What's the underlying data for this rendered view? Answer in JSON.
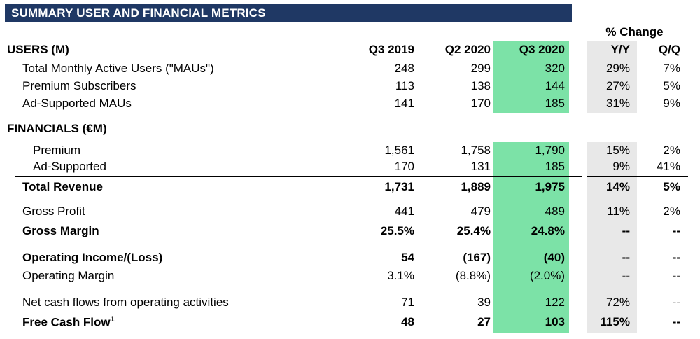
{
  "title": "SUMMARY USER AND FINANCIAL METRICS",
  "pct_change_label": "% Change",
  "colors": {
    "header_bar": "#1F3864",
    "q3_2020_highlight": "#7CE2A7",
    "yy_highlight": "#E8E8E8",
    "muted_dash": "#595959"
  },
  "rows": [
    {
      "id": "users-header",
      "kind": "column-header",
      "label": "USERS (M)",
      "indent": 0,
      "bold": true,
      "values": [
        "Q3 2019",
        "Q2 2020",
        "Q3 2020",
        "Y/Y",
        "Q/Q"
      ]
    },
    {
      "id": "total-maus",
      "label": "Total Monthly Active Users (\"MAUs\")",
      "indent": 1,
      "bold": false,
      "values": [
        "248",
        "299",
        "320",
        "29%",
        "7%"
      ]
    },
    {
      "id": "premium-subscribers",
      "label": "Premium Subscribers",
      "indent": 1,
      "bold": false,
      "values": [
        "113",
        "138",
        "144",
        "27%",
        "5%"
      ]
    },
    {
      "id": "ad-supported-maus",
      "label": "Ad-Supported MAUs",
      "indent": 1,
      "bold": false,
      "values": [
        "141",
        "170",
        "185",
        "31%",
        "9%"
      ]
    },
    {
      "id": "financials-header",
      "kind": "section",
      "label": "FINANCIALS (€M)",
      "indent": 0,
      "bold": true,
      "values": [
        "",
        "",
        "",
        "",
        ""
      ]
    },
    {
      "id": "premium-revenue",
      "label": "Premium",
      "indent": 2,
      "bold": false,
      "values": [
        "1,561",
        "1,758",
        "1,790",
        "15%",
        "2%"
      ]
    },
    {
      "id": "ad-supported-revenue",
      "label": "Ad-Supported",
      "indent": 2,
      "bold": false,
      "values": [
        "170",
        "131",
        "185",
        "9%",
        "41%"
      ]
    },
    {
      "id": "total-revenue",
      "label": "Total Revenue",
      "indent": 1,
      "bold": true,
      "values": [
        "1,731",
        "1,889",
        "1,975",
        "14%",
        "5%"
      ]
    },
    {
      "id": "gross-profit",
      "label": "Gross Profit",
      "indent": 1,
      "bold": false,
      "values": [
        "441",
        "479",
        "489",
        "11%",
        "2%"
      ]
    },
    {
      "id": "gross-margin",
      "label": "Gross Margin",
      "indent": 1,
      "bold": true,
      "values": [
        "25.5%",
        "25.4%",
        "24.8%",
        "--",
        "--"
      ]
    },
    {
      "id": "operating-income-loss",
      "label": "Operating Income/(Loss)",
      "indent": 1,
      "bold": true,
      "values": [
        "54",
        "(167)",
        "(40)",
        "--",
        "--"
      ]
    },
    {
      "id": "operating-margin",
      "label": "Operating Margin",
      "indent": 1,
      "bold": false,
      "values": [
        "3.1%",
        "(8.8%)",
        "(2.0%)",
        "--",
        "--"
      ]
    },
    {
      "id": "net-cash-flows",
      "label": "Net cash flows from operating activities",
      "indent": 1,
      "bold": false,
      "values": [
        "71",
        "39",
        "122",
        "72%",
        "--"
      ]
    },
    {
      "id": "free-cash-flow",
      "label": "Free Cash Flow",
      "sup": "1",
      "indent": 1,
      "bold": true,
      "values": [
        "48",
        "27",
        "103",
        "115%",
        "--"
      ]
    }
  ]
}
